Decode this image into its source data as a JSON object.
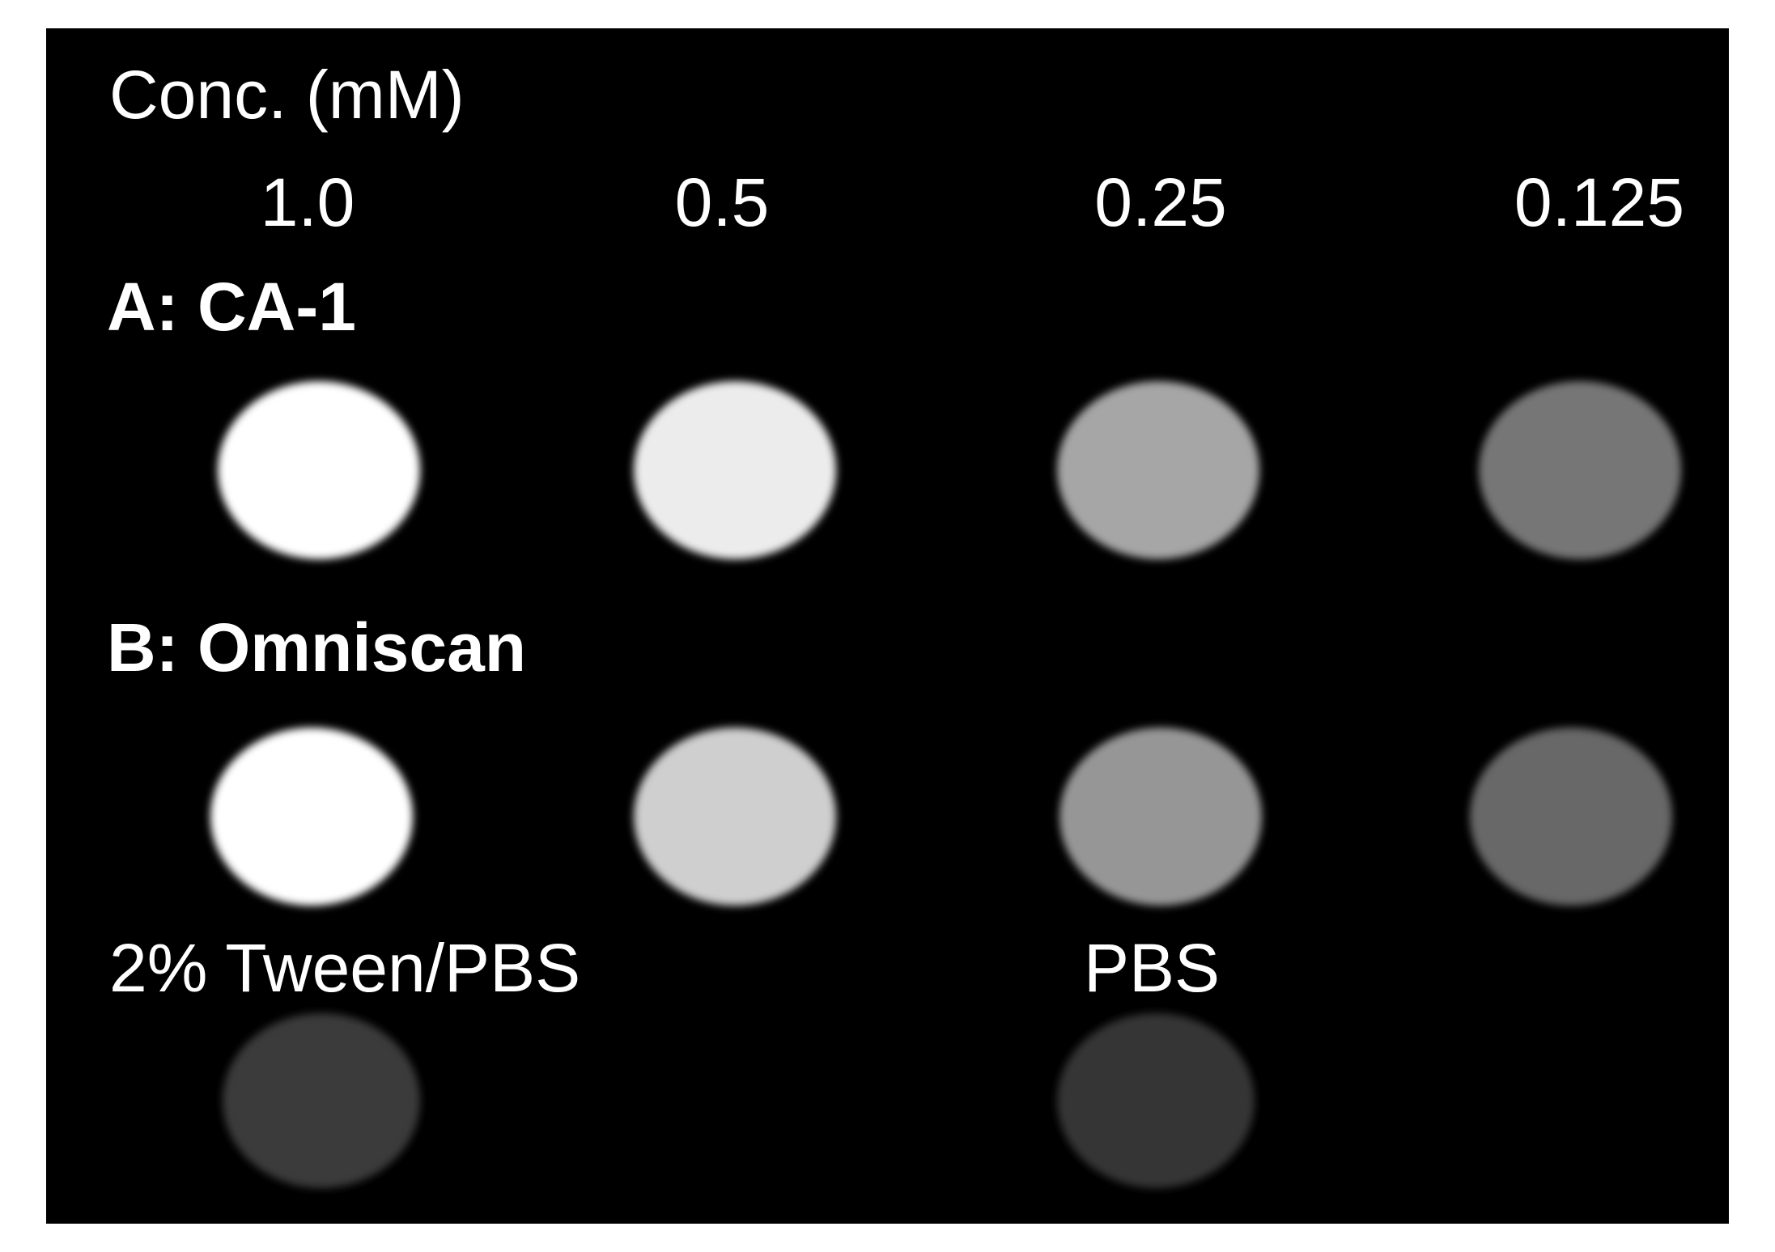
{
  "header": {
    "title": "Conc. (mM)",
    "concentrations": [
      "1.0",
      "0.5",
      "0.25",
      "0.125"
    ]
  },
  "rows": [
    {
      "label": "A: CA-1"
    },
    {
      "label": "B: Omniscan"
    }
  ],
  "controls": [
    {
      "label": "2% Tween/PBS"
    },
    {
      "label": "PBS"
    }
  ]
}
